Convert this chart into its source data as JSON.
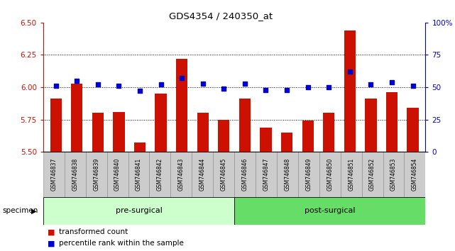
{
  "title": "GDS4354 / 240350_at",
  "samples": [
    "GSM746837",
    "GSM746838",
    "GSM746839",
    "GSM746840",
    "GSM746841",
    "GSM746842",
    "GSM746843",
    "GSM746844",
    "GSM746845",
    "GSM746846",
    "GSM746847",
    "GSM746848",
    "GSM746849",
    "GSM746850",
    "GSM746851",
    "GSM746852",
    "GSM746853",
    "GSM746854"
  ],
  "bar_values": [
    5.91,
    6.03,
    5.8,
    5.81,
    5.57,
    5.95,
    6.22,
    5.8,
    5.75,
    5.91,
    5.69,
    5.65,
    5.74,
    5.8,
    6.44,
    5.91,
    5.96,
    5.84
  ],
  "percentile_values": [
    51,
    55,
    52,
    51,
    47,
    52,
    57,
    53,
    49,
    53,
    48,
    48,
    50,
    50,
    62,
    52,
    54,
    51
  ],
  "ylim_left": [
    5.5,
    6.5
  ],
  "ylim_right": [
    0,
    100
  ],
  "yticks_left": [
    5.5,
    5.75,
    6.0,
    6.25,
    6.5
  ],
  "yticks_right": [
    0,
    25,
    50,
    75,
    100
  ],
  "ytick_labels_right": [
    "0",
    "25",
    "50",
    "75",
    "100%"
  ],
  "bar_color": "#cc1100",
  "dot_color": "#0000cc",
  "pre_surgical_count": 9,
  "post_surgical_count": 9,
  "group_labels": [
    "pre-surgical",
    "post-surgical"
  ],
  "pre_color": "#ccffcc",
  "post_color": "#66dd66",
  "specimen_label": "specimen",
  "legend_bar_label": "transformed count",
  "legend_dot_label": "percentile rank within the sample",
  "axis_color_left": "#cc1100",
  "axis_color_right": "#0000cc",
  "tick_bg_color": "#cccccc",
  "bar_width": 0.55,
  "grid_yticks": [
    5.75,
    6.0,
    6.25
  ]
}
